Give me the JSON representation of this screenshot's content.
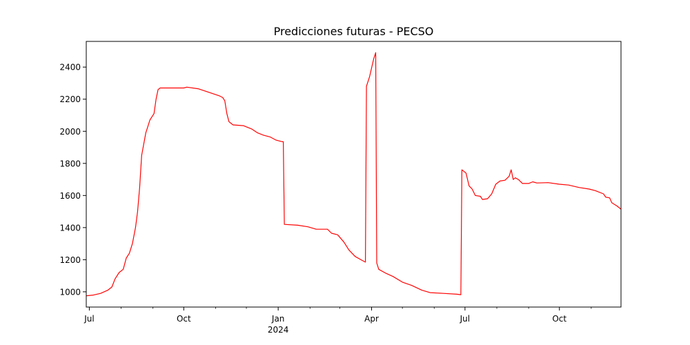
{
  "chart_data": {
    "type": "line",
    "title": "Predicciones futuras - PECSO",
    "xlabel": "",
    "ylabel": "",
    "color": "#ff0000",
    "grid": false,
    "legend": "none",
    "xlim": [
      "2023-06-28",
      "2024-11-30"
    ],
    "ylim": [
      905,
      2560
    ],
    "x_ticks": [
      {
        "date": "2023-07-01",
        "label": "Jul",
        "sublabel": ""
      },
      {
        "date": "2023-10-01",
        "label": "Oct",
        "sublabel": ""
      },
      {
        "date": "2024-01-01",
        "label": "Jan",
        "sublabel": "2024"
      },
      {
        "date": "2024-04-01",
        "label": "Apr",
        "sublabel": ""
      },
      {
        "date": "2024-07-01",
        "label": "Jul",
        "sublabel": ""
      },
      {
        "date": "2024-10-01",
        "label": "Oct",
        "sublabel": ""
      }
    ],
    "x_minor_ticks": [
      "2023-08-01",
      "2023-09-01",
      "2023-11-01",
      "2023-12-01",
      "2024-02-01",
      "2024-03-01",
      "2024-05-01",
      "2024-06-01",
      "2024-08-01",
      "2024-09-01",
      "2024-11-01"
    ],
    "y_ticks": [
      1000,
      1200,
      1400,
      1600,
      1800,
      2000,
      2200,
      2400
    ],
    "series": [
      {
        "name": "",
        "points": [
          [
            "2023-06-28",
            975
          ],
          [
            "2023-07-05",
            980
          ],
          [
            "2023-07-12",
            990
          ],
          [
            "2023-07-19",
            1010
          ],
          [
            "2023-07-23",
            1030
          ],
          [
            "2023-07-26",
            1080
          ],
          [
            "2023-07-30",
            1120
          ],
          [
            "2023-08-03",
            1140
          ],
          [
            "2023-08-06",
            1210
          ],
          [
            "2023-08-09",
            1240
          ],
          [
            "2023-08-12",
            1300
          ],
          [
            "2023-08-15",
            1400
          ],
          [
            "2023-08-17",
            1500
          ],
          [
            "2023-08-19",
            1650
          ],
          [
            "2023-08-21",
            1850
          ],
          [
            "2023-08-23",
            1920
          ],
          [
            "2023-08-25",
            1990
          ],
          [
            "2023-08-27",
            2030
          ],
          [
            "2023-08-29",
            2070
          ],
          [
            "2023-08-31",
            2090
          ],
          [
            "2023-09-02",
            2110
          ],
          [
            "2023-09-04",
            2200
          ],
          [
            "2023-09-06",
            2260
          ],
          [
            "2023-09-08",
            2270
          ],
          [
            "2023-09-20",
            2270
          ],
          [
            "2023-10-01",
            2270
          ],
          [
            "2023-10-04",
            2275
          ],
          [
            "2023-10-15",
            2265
          ],
          [
            "2023-10-22",
            2250
          ],
          [
            "2023-10-29",
            2235
          ],
          [
            "2023-11-05",
            2220
          ],
          [
            "2023-11-08",
            2210
          ],
          [
            "2023-11-10",
            2190
          ],
          [
            "2023-11-12",
            2110
          ],
          [
            "2023-11-14",
            2060
          ],
          [
            "2023-11-16",
            2050
          ],
          [
            "2023-11-18",
            2040
          ],
          [
            "2023-11-28",
            2035
          ],
          [
            "2023-12-06",
            2015
          ],
          [
            "2023-12-12",
            1990
          ],
          [
            "2023-12-18",
            1975
          ],
          [
            "2023-12-24",
            1965
          ],
          [
            "2023-12-30",
            1945
          ],
          [
            "2024-01-05",
            1935
          ],
          [
            "2024-01-06",
            1935
          ],
          [
            "2024-01-07",
            1420
          ],
          [
            "2024-01-20",
            1415
          ],
          [
            "2024-01-30",
            1405
          ],
          [
            "2024-02-07",
            1390
          ],
          [
            "2024-02-18",
            1390
          ],
          [
            "2024-02-22",
            1365
          ],
          [
            "2024-02-28",
            1355
          ],
          [
            "2024-03-05",
            1310
          ],
          [
            "2024-03-10",
            1260
          ],
          [
            "2024-03-16",
            1220
          ],
          [
            "2024-03-23",
            1195
          ],
          [
            "2024-03-26",
            1185
          ],
          [
            "2024-03-27",
            2280
          ],
          [
            "2024-03-30",
            2340
          ],
          [
            "2024-04-03",
            2450
          ],
          [
            "2024-04-05",
            2490
          ],
          [
            "2024-04-06",
            1180
          ],
          [
            "2024-04-08",
            1140
          ],
          [
            "2024-04-15",
            1115
          ],
          [
            "2024-04-22",
            1095
          ],
          [
            "2024-05-01",
            1060
          ],
          [
            "2024-05-10",
            1040
          ],
          [
            "2024-05-20",
            1010
          ],
          [
            "2024-05-28",
            995
          ],
          [
            "2024-06-10",
            990
          ],
          [
            "2024-06-23",
            985
          ],
          [
            "2024-06-27",
            982
          ],
          [
            "2024-06-28",
            1760
          ],
          [
            "2024-07-02",
            1740
          ],
          [
            "2024-07-05",
            1660
          ],
          [
            "2024-07-08",
            1640
          ],
          [
            "2024-07-11",
            1600
          ],
          [
            "2024-07-16",
            1595
          ],
          [
            "2024-07-18",
            1575
          ],
          [
            "2024-07-23",
            1580
          ],
          [
            "2024-07-27",
            1610
          ],
          [
            "2024-07-31",
            1670
          ],
          [
            "2024-08-04",
            1690
          ],
          [
            "2024-08-09",
            1695
          ],
          [
            "2024-08-13",
            1720
          ],
          [
            "2024-08-15",
            1760
          ],
          [
            "2024-08-17",
            1700
          ],
          [
            "2024-08-19",
            1710
          ],
          [
            "2024-08-22",
            1700
          ],
          [
            "2024-08-26",
            1675
          ],
          [
            "2024-09-01",
            1675
          ],
          [
            "2024-09-05",
            1685
          ],
          [
            "2024-09-09",
            1678
          ],
          [
            "2024-09-20",
            1680
          ],
          [
            "2024-10-01",
            1670
          ],
          [
            "2024-10-10",
            1665
          ],
          [
            "2024-10-20",
            1650
          ],
          [
            "2024-10-30",
            1640
          ],
          [
            "2024-11-05",
            1630
          ],
          [
            "2024-11-13",
            1610
          ],
          [
            "2024-11-15",
            1590
          ],
          [
            "2024-11-19",
            1585
          ],
          [
            "2024-11-21",
            1555
          ],
          [
            "2024-11-26",
            1535
          ],
          [
            "2024-11-30",
            1515
          ]
        ]
      }
    ]
  }
}
